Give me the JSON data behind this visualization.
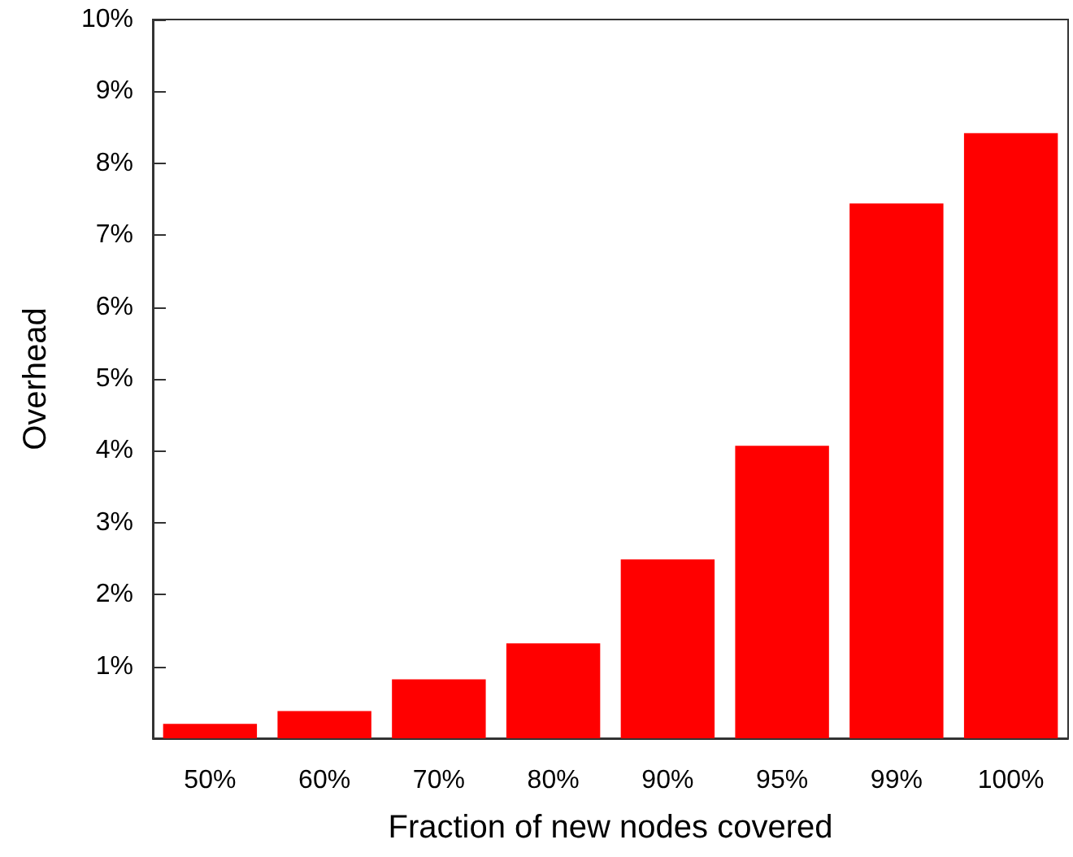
{
  "chart_data": {
    "type": "bar",
    "xlabel": "Fraction of new nodes covered",
    "ylabel": "Overhead",
    "categories": [
      "50%",
      "60%",
      "70%",
      "80%",
      "90%",
      "95%",
      "99%",
      "100%"
    ],
    "series": [
      {
        "color": "#ff0000",
        "values": [
          0.2,
          0.38,
          0.82,
          1.32,
          2.49,
          4.07,
          7.44,
          8.42
        ]
      }
    ],
    "ylim": [
      0,
      10
    ],
    "yticks": [
      {
        "value": 0,
        "label": null
      },
      {
        "value": 1,
        "label": "1%"
      },
      {
        "value": 2,
        "label": "2%"
      },
      {
        "value": 3,
        "label": "3%"
      },
      {
        "value": 4,
        "label": "4%"
      },
      {
        "value": 5,
        "label": "5%"
      },
      {
        "value": 6,
        "label": "6%"
      },
      {
        "value": 7,
        "label": "7%"
      },
      {
        "value": 8,
        "label": "8%"
      },
      {
        "value": 9,
        "label": "9%"
      },
      {
        "value": 10,
        "label": "10%"
      }
    ],
    "grid": false
  }
}
